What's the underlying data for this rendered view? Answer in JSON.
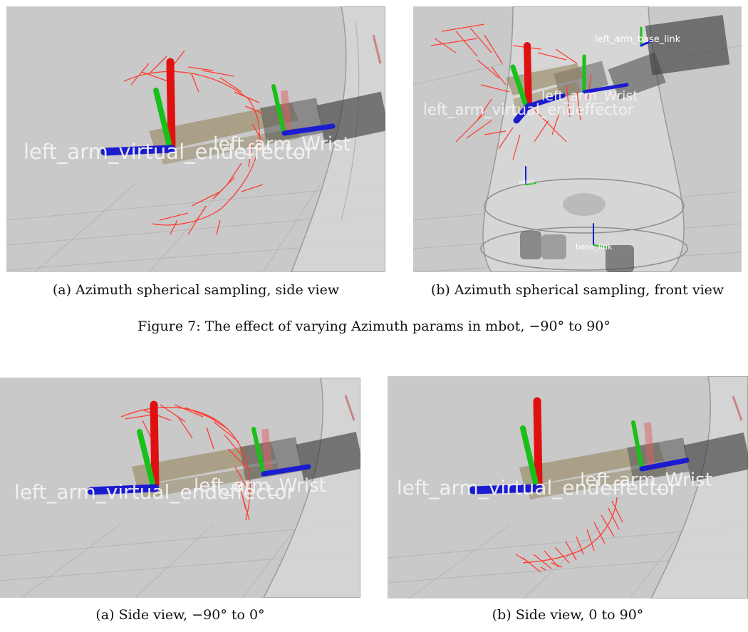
{
  "figure7": {
    "panel_a": {
      "labels": {
        "effector": "left_arm_virtual_endeffector",
        "wrist": "left_arm_Wrist"
      },
      "caption": "(a) Azimuth spherical sampling, side view"
    },
    "panel_b": {
      "labels": {
        "effector": "left_arm_virtual_endeffector",
        "wrist": "left_arm_Wrist",
        "base_link_arm": "left_arm_base_link",
        "base_link": "base_link",
        "odom": "odom"
      },
      "caption": "(b) Azimuth spherical sampling, front view"
    },
    "caption": "Figure 7: The effect of varying Azimuth params in mbot, −90° to 90°"
  },
  "figure8": {
    "panel_a": {
      "labels": {
        "effector": "left_arm_virtual_endeffector",
        "wrist": "left_arm_Wrist"
      },
      "caption": "(a) Side view, −90° to 0°"
    },
    "panel_b": {
      "labels": {
        "effector": "left_arm_virtual_endeffector",
        "wrist": "left_arm_Wrist"
      },
      "caption": "(b) Side view, 0 to 90°"
    }
  },
  "colors": {
    "background": "#c9c9c9",
    "x_axis": "#1b1bd0",
    "y_axis": "#19c019",
    "z_axis": "#e01010",
    "samples": "#ff3b30",
    "arm_link": "#8f7e52"
  }
}
